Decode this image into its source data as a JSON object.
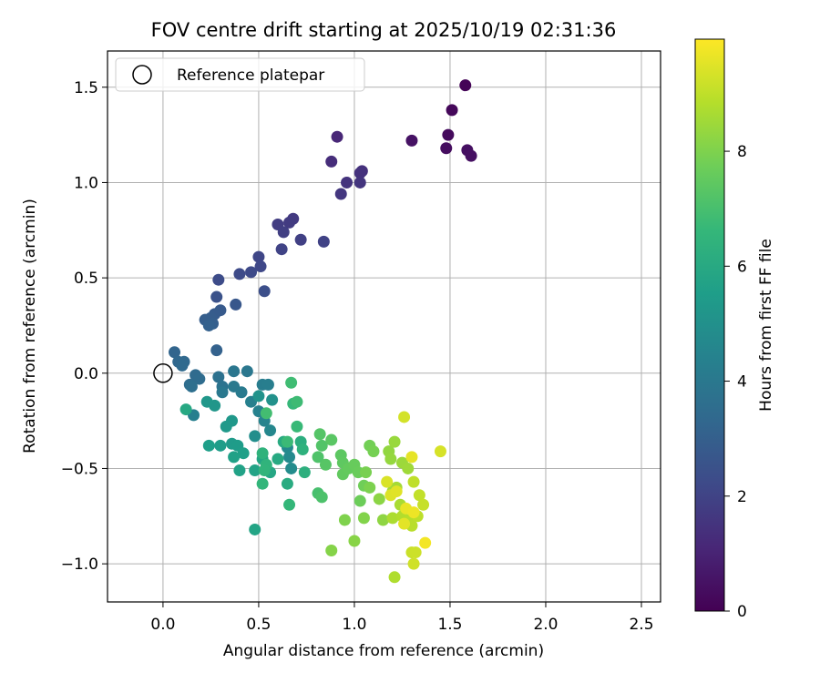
{
  "chart_data": {
    "type": "scatter",
    "title": "FOV centre drift starting at 2025/10/19 02:31:36",
    "xlabel": "Angular distance from reference (arcmin)",
    "ylabel": "Rotation from reference (arcmin)",
    "xlim": [
      -0.29,
      2.6
    ],
    "ylim": [
      -1.2,
      1.69
    ],
    "xticks": [
      0.0,
      0.5,
      1.0,
      1.5,
      2.0,
      2.5
    ],
    "xtick_labels": [
      "0.0",
      "0.5",
      "1.0",
      "1.5",
      "2.0",
      "2.5"
    ],
    "yticks": [
      1.5,
      1.0,
      0.5,
      0.0,
      -0.5,
      -1.0
    ],
    "ytick_labels": [
      "1.5",
      "1.0",
      "0.5",
      "0.0",
      "−0.5",
      "−1.0"
    ],
    "grid": true,
    "legend": {
      "location": "top-left",
      "entries": [
        "Reference platepar"
      ]
    },
    "reference_point": {
      "x": 0.0,
      "y": 0.0,
      "label": "Reference platepar"
    },
    "colorbar": {
      "label": "Hours from first FF file",
      "range": [
        0,
        9.95
      ],
      "ticks": [
        0,
        2,
        4,
        6,
        8
      ],
      "tick_labels": [
        "0",
        "2",
        "4",
        "6",
        "8"
      ],
      "colormap": [
        "#440154",
        "#482777",
        "#3e4a89",
        "#31688e",
        "#26828e",
        "#1f9e89",
        "#35b779",
        "#6ece58",
        "#b5de2b",
        "#fde725"
      ]
    },
    "series": [
      {
        "name": "FOV centre drift",
        "points": [
          [
            1.58,
            1.51,
            0.1
          ],
          [
            1.51,
            1.38,
            0.2
          ],
          [
            1.49,
            1.25,
            0.3
          ],
          [
            1.48,
            1.18,
            0.35
          ],
          [
            1.59,
            1.17,
            0.4
          ],
          [
            1.61,
            1.14,
            0.45
          ],
          [
            1.3,
            1.22,
            0.5
          ],
          [
            0.91,
            1.24,
            1.1
          ],
          [
            0.88,
            1.11,
            1.3
          ],
          [
            1.04,
            1.06,
            1.4
          ],
          [
            1.03,
            1.05,
            1.45
          ],
          [
            0.96,
            1.0,
            1.5
          ],
          [
            1.03,
            1.0,
            1.55
          ],
          [
            0.93,
            0.94,
            1.6
          ],
          [
            0.68,
            0.81,
            1.7
          ],
          [
            0.66,
            0.79,
            1.75
          ],
          [
            0.6,
            0.78,
            1.8
          ],
          [
            0.63,
            0.74,
            1.85
          ],
          [
            0.72,
            0.7,
            1.9
          ],
          [
            0.84,
            0.69,
            1.95
          ],
          [
            0.62,
            0.65,
            2.0
          ],
          [
            0.5,
            0.61,
            2.1
          ],
          [
            0.51,
            0.56,
            2.15
          ],
          [
            0.46,
            0.53,
            2.2
          ],
          [
            0.4,
            0.52,
            2.25
          ],
          [
            0.29,
            0.49,
            2.3
          ],
          [
            0.53,
            0.43,
            2.4
          ],
          [
            0.28,
            0.4,
            2.5
          ],
          [
            0.38,
            0.36,
            2.7
          ],
          [
            0.3,
            0.33,
            2.8
          ],
          [
            0.27,
            0.31,
            2.85
          ],
          [
            0.25,
            0.29,
            2.9
          ],
          [
            0.22,
            0.28,
            2.95
          ],
          [
            0.26,
            0.26,
            3.0
          ],
          [
            0.24,
            0.25,
            3.05
          ],
          [
            0.28,
            0.12,
            3.1
          ],
          [
            0.06,
            0.11,
            3.2
          ],
          [
            0.08,
            0.06,
            3.3
          ],
          [
            0.11,
            0.06,
            3.35
          ],
          [
            0.1,
            0.04,
            3.4
          ],
          [
            0.17,
            -0.01,
            3.45
          ],
          [
            0.19,
            -0.03,
            3.5
          ],
          [
            0.14,
            -0.06,
            3.55
          ],
          [
            0.15,
            -0.07,
            3.6
          ],
          [
            0.29,
            -0.02,
            3.7
          ],
          [
            0.31,
            -0.07,
            3.8
          ],
          [
            0.37,
            0.01,
            3.9
          ],
          [
            0.44,
            0.01,
            3.95
          ],
          [
            0.31,
            -0.1,
            4.0
          ],
          [
            0.37,
            -0.07,
            4.05
          ],
          [
            0.41,
            -0.1,
            4.1
          ],
          [
            0.52,
            -0.06,
            4.2
          ],
          [
            0.55,
            -0.06,
            4.25
          ],
          [
            0.16,
            -0.22,
            4.3
          ],
          [
            0.46,
            -0.15,
            4.35
          ],
          [
            0.5,
            -0.2,
            4.4
          ],
          [
            0.53,
            -0.25,
            4.5
          ],
          [
            0.56,
            -0.3,
            4.6
          ],
          [
            0.65,
            -0.39,
            4.7
          ],
          [
            0.66,
            -0.44,
            4.75
          ],
          [
            0.67,
            -0.5,
            4.8
          ],
          [
            0.48,
            -0.33,
            4.9
          ],
          [
            0.57,
            -0.14,
            5.0
          ],
          [
            0.5,
            -0.12,
            5.1
          ],
          [
            0.27,
            -0.17,
            5.2
          ],
          [
            0.23,
            -0.15,
            5.25
          ],
          [
            0.36,
            -0.25,
            5.3
          ],
          [
            0.33,
            -0.28,
            5.35
          ],
          [
            0.36,
            -0.37,
            5.4
          ],
          [
            0.39,
            -0.38,
            5.45
          ],
          [
            0.3,
            -0.38,
            5.5
          ],
          [
            0.24,
            -0.38,
            5.55
          ],
          [
            0.42,
            -0.42,
            5.6
          ],
          [
            0.37,
            -0.44,
            5.65
          ],
          [
            0.4,
            -0.51,
            5.7
          ],
          [
            0.48,
            -0.51,
            5.75
          ],
          [
            0.48,
            -0.82,
            5.8
          ],
          [
            0.52,
            -0.45,
            5.85
          ],
          [
            0.56,
            -0.52,
            5.9
          ],
          [
            0.12,
            -0.19,
            5.95
          ],
          [
            0.6,
            -0.45,
            6.0
          ],
          [
            0.63,
            -0.36,
            6.05
          ],
          [
            0.65,
            -0.58,
            6.1
          ],
          [
            0.72,
            -0.36,
            6.2
          ],
          [
            0.74,
            -0.52,
            6.3
          ],
          [
            0.73,
            -0.4,
            6.35
          ],
          [
            0.52,
            -0.42,
            6.4
          ],
          [
            0.54,
            -0.48,
            6.45
          ],
          [
            0.53,
            -0.51,
            6.5
          ],
          [
            0.52,
            -0.58,
            6.55
          ],
          [
            0.66,
            -0.69,
            6.6
          ],
          [
            0.68,
            -0.16,
            6.65
          ],
          [
            0.7,
            -0.28,
            6.7
          ],
          [
            0.65,
            -0.36,
            6.75
          ],
          [
            0.7,
            -0.15,
            6.8
          ],
          [
            0.67,
            -0.05,
            6.85
          ],
          [
            0.54,
            -0.21,
            6.9
          ],
          [
            0.81,
            -0.63,
            7.0
          ],
          [
            0.83,
            -0.65,
            7.1
          ],
          [
            0.81,
            -0.44,
            7.15
          ],
          [
            0.83,
            -0.38,
            7.2
          ],
          [
            0.82,
            -0.32,
            7.25
          ],
          [
            0.85,
            -0.48,
            7.3
          ],
          [
            0.88,
            -0.35,
            7.35
          ],
          [
            0.93,
            -0.43,
            7.4
          ],
          [
            0.94,
            -0.47,
            7.45
          ],
          [
            0.94,
            -0.53,
            7.5
          ],
          [
            0.97,
            -0.5,
            7.55
          ],
          [
            1.0,
            -0.48,
            7.6
          ],
          [
            1.02,
            -0.52,
            7.65
          ],
          [
            1.03,
            -0.67,
            7.7
          ],
          [
            1.05,
            -0.59,
            7.75
          ],
          [
            1.08,
            -0.38,
            7.8
          ],
          [
            1.1,
            -0.41,
            7.85
          ],
          [
            1.06,
            -0.52,
            7.9
          ],
          [
            1.08,
            -0.6,
            7.95
          ],
          [
            0.95,
            -0.77,
            8.0
          ],
          [
            1.05,
            -0.76,
            8.05
          ],
          [
            0.88,
            -0.93,
            8.1
          ],
          [
            1.0,
            -0.88,
            8.15
          ],
          [
            1.13,
            -0.66,
            8.2
          ],
          [
            1.15,
            -0.77,
            8.25
          ],
          [
            1.18,
            -0.41,
            8.3
          ],
          [
            1.19,
            -0.45,
            8.35
          ],
          [
            1.21,
            -0.36,
            8.4
          ],
          [
            1.25,
            -0.47,
            8.45
          ],
          [
            1.28,
            -0.5,
            8.5
          ],
          [
            1.2,
            -0.62,
            8.55
          ],
          [
            1.22,
            -0.6,
            8.6
          ],
          [
            1.24,
            -0.69,
            8.65
          ],
          [
            1.2,
            -0.76,
            8.7
          ],
          [
            1.21,
            -1.07,
            8.75
          ],
          [
            1.25,
            -0.75,
            8.8
          ],
          [
            1.29,
            -0.77,
            8.85
          ],
          [
            1.3,
            -0.8,
            8.9
          ],
          [
            1.33,
            -0.75,
            8.95
          ],
          [
            1.31,
            -0.57,
            9.0
          ],
          [
            1.34,
            -0.64,
            9.05
          ],
          [
            1.36,
            -0.69,
            9.1
          ],
          [
            1.3,
            -0.94,
            9.15
          ],
          [
            1.32,
            -0.94,
            9.2
          ],
          [
            1.31,
            -1.0,
            9.25
          ],
          [
            1.26,
            -0.23,
            9.3
          ],
          [
            1.45,
            -0.41,
            9.35
          ],
          [
            1.17,
            -0.57,
            9.4
          ],
          [
            1.19,
            -0.64,
            9.45
          ],
          [
            1.22,
            -0.62,
            9.5
          ],
          [
            1.26,
            -0.79,
            9.55
          ],
          [
            1.3,
            -0.44,
            9.6
          ],
          [
            1.27,
            -0.71,
            9.65
          ],
          [
            1.31,
            -0.73,
            9.7
          ],
          [
            1.37,
            -0.89,
            9.8
          ]
        ]
      }
    ]
  }
}
